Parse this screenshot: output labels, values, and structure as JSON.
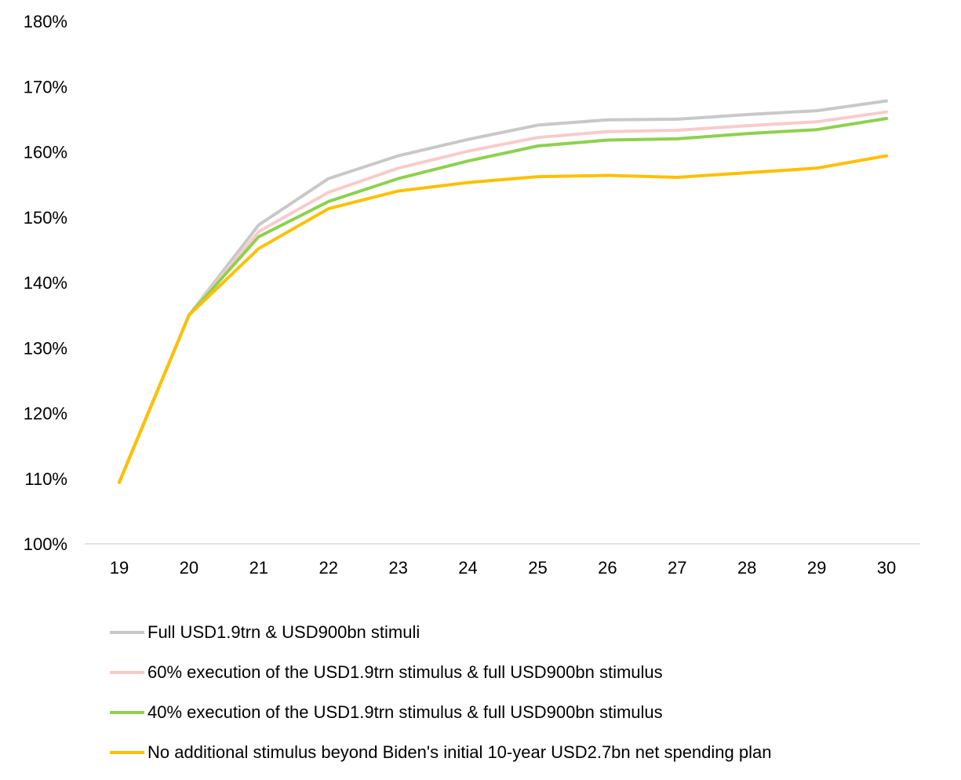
{
  "chart_data": {
    "type": "line",
    "title": "",
    "xlabel": "",
    "ylabel": "",
    "x": [
      "19",
      "20",
      "21",
      "22",
      "23",
      "24",
      "25",
      "26",
      "27",
      "28",
      "29",
      "30"
    ],
    "ylim": [
      100,
      180
    ],
    "yticks": [
      100,
      110,
      120,
      130,
      140,
      150,
      160,
      170,
      180
    ],
    "ytick_labels": [
      "100%",
      "110%",
      "120%",
      "130%",
      "140%",
      "150%",
      "160%",
      "170%",
      "180%"
    ],
    "grid": false,
    "legend_position": "bottom",
    "series": [
      {
        "name": "Full USD1.9trn & USD900bn stimuli",
        "color": "#c8c8c8",
        "values": [
          109.4,
          135.0,
          148.8,
          155.9,
          159.4,
          161.9,
          164.1,
          164.9,
          165.0,
          165.7,
          166.3,
          167.8
        ]
      },
      {
        "name": "60% execution of the USD1.9trn stimulus & full USD900bn stimulus",
        "color": "#f8cbcb",
        "values": [
          109.4,
          135.0,
          147.8,
          153.8,
          157.5,
          160.1,
          162.2,
          163.1,
          163.3,
          164.0,
          164.6,
          166.1
        ]
      },
      {
        "name": "40% execution of the USD1.9trn stimulus & full USD900bn stimulus",
        "color": "#8dd14f",
        "values": [
          109.4,
          135.0,
          147.0,
          152.4,
          155.9,
          158.6,
          160.9,
          161.8,
          162.0,
          162.8,
          163.4,
          165.1
        ]
      },
      {
        "name": "No additional stimulus beyond Biden's initial 10-year USD2.7bn net spending plan",
        "color": "#ffc000",
        "values": [
          109.4,
          135.0,
          145.2,
          151.3,
          154.0,
          155.3,
          156.2,
          156.4,
          156.1,
          156.8,
          157.5,
          159.4
        ]
      }
    ]
  }
}
